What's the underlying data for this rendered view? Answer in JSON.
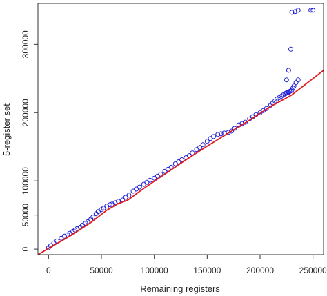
{
  "chart_data": {
    "type": "scatter",
    "title": "",
    "xlabel": "Remaining registers",
    "ylabel": "5-register set",
    "xlim": [
      -10000,
      260000
    ],
    "ylim": [
      -8000,
      360000
    ],
    "x_ticks": [
      0,
      50000,
      100000,
      150000,
      200000,
      250000
    ],
    "x_tick_labels": [
      "0",
      "50000",
      "100000",
      "150000",
      "200000",
      "250000"
    ],
    "y_ticks": [
      0,
      50000,
      100000,
      200000,
      300000
    ],
    "y_tick_labels": [
      "0",
      "50000",
      "100000",
      "200000",
      "300000"
    ],
    "grid": false,
    "legend": "none",
    "colors": {
      "points": "#1f1fd6",
      "fit_line": "#e31a1c",
      "axis": "#333333"
    },
    "series": [
      {
        "kind": "points",
        "marker": "open-circle",
        "x": [
          0,
          2000,
          5000,
          8000,
          12000,
          15000,
          18000,
          20000,
          23000,
          25000,
          27000,
          30000,
          32000,
          35000,
          37000,
          40000,
          42000,
          45000,
          47000,
          50000,
          52000,
          55000,
          58000,
          60000,
          63000,
          66000,
          70000,
          73000,
          76000,
          80000,
          83000,
          86000,
          90000,
          93000,
          96000,
          100000,
          103000,
          106000,
          110000,
          113000,
          116000,
          120000,
          123000,
          126000,
          130000,
          133000,
          136000,
          140000,
          143000,
          146000,
          150000,
          153000,
          156000,
          160000,
          163000,
          166000,
          170000,
          173000,
          176000,
          180000,
          183000,
          186000,
          190000,
          193000,
          196000,
          200000,
          203000,
          206000,
          210000,
          212000,
          214000,
          216000,
          218000,
          220000,
          222000,
          224000,
          225000,
          226000,
          227000,
          228000,
          229000,
          230000,
          231000,
          232000,
          234000,
          236000,
          248000,
          250000
        ],
        "y": [
          2000,
          5000,
          9000,
          12000,
          16000,
          19000,
          21000,
          23000,
          26000,
          28000,
          30000,
          32000,
          35000,
          38000,
          40000,
          44000,
          47000,
          52000,
          55000,
          58000,
          60000,
          63000,
          65000,
          66000,
          68000,
          70000,
          72000,
          76000,
          79000,
          85000,
          88000,
          91000,
          95000,
          98000,
          101000,
          104000,
          107000,
          110000,
          114000,
          117000,
          120000,
          125000,
          128000,
          131000,
          134000,
          137000,
          141000,
          146000,
          149000,
          153000,
          158000,
          162000,
          165000,
          168000,
          169000,
          170000,
          171000,
          173000,
          177000,
          182000,
          184000,
          186000,
          191000,
          194000,
          197000,
          200000,
          203000,
          206000,
          211000,
          214000,
          217000,
          220000,
          222000,
          224000,
          226000,
          228000,
          229000,
          230000,
          230000,
          231000,
          232000,
          233000,
          236000,
          239000,
          244000,
          248000,
          350000,
          350000
        ]
      },
      {
        "kind": "points",
        "marker": "open-circle",
        "x": [
          225000,
          227000,
          229000,
          230000,
          233000,
          236000
        ],
        "y": [
          248000,
          262000,
          293000,
          347000,
          348000,
          350000
        ]
      },
      {
        "kind": "line",
        "x": [
          -10000,
          0,
          20000,
          40000,
          55000,
          65000,
          75000,
          90000,
          110000,
          130000,
          150000,
          170000,
          190000,
          210000,
          230000,
          260000
        ],
        "y": [
          -8000,
          1000,
          19000,
          39000,
          57000,
          66000,
          72000,
          89000,
          110000,
          131000,
          151000,
          170000,
          189000,
          209000,
          226000,
          262000
        ]
      }
    ]
  }
}
